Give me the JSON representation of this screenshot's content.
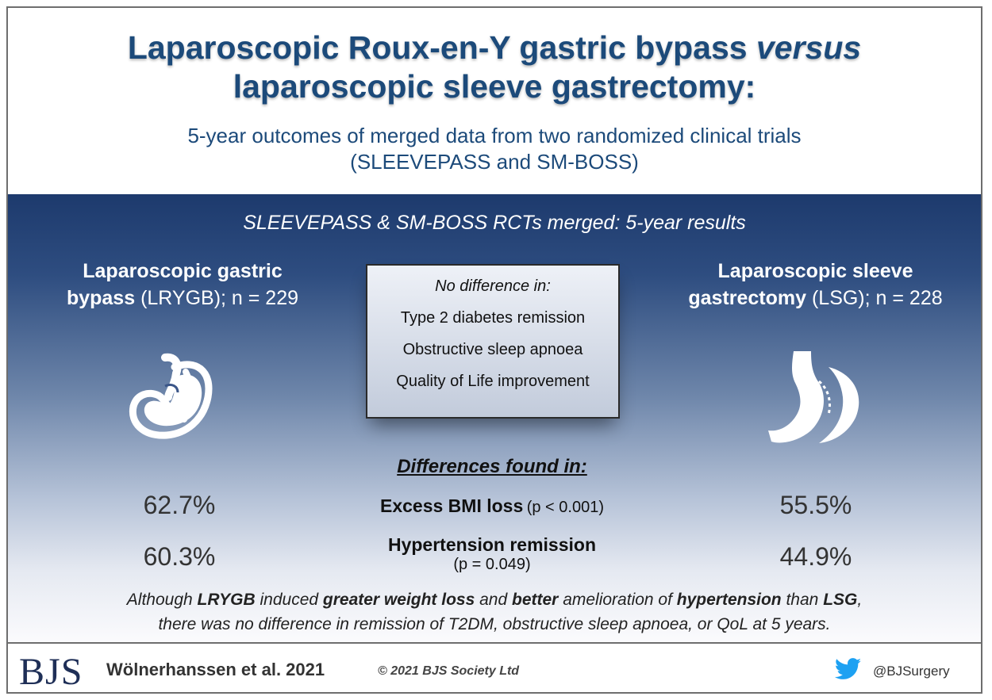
{
  "header": {
    "title_line1_a": "Laparoscopic Roux-en-Y gastric bypass ",
    "title_line1_b": "versus",
    "title_line2": "laparoscopic sleeve gastrectomy:",
    "subtitle_line1": "5-year outcomes of merged data from two randomized clinical trials",
    "subtitle_line2": "(SLEEVEPASS and SM-BOSS)"
  },
  "panel": {
    "heading": "SLEEVEPASS & SM-BOSS RCTs merged: 5-year results",
    "left_arm": {
      "bold_1": "Laparoscopic gastric",
      "bold_2": "bypass",
      "rest": " (LRYGB); n = 229",
      "icon": "gastric-bypass-stomach-icon"
    },
    "right_arm": {
      "bold_1": "Laparoscopic sleeve",
      "bold_2": "gastrectomy",
      "rest": " (LSG); n = 228",
      "icon": "sleeve-gastrectomy-stomach-icon"
    },
    "no_difference": {
      "heading": "No difference in:",
      "items": [
        "Type 2 diabetes remission",
        "Obstructive sleep apnoea",
        "Quality of Life improvement"
      ]
    },
    "differences": {
      "heading": "Differences found in:",
      "metrics": [
        {
          "name": "Excess BMI loss",
          "p": "(p < 0.001)",
          "lrygb": "62.7%",
          "lsg": "55.5%"
        },
        {
          "name": "Hypertension remission",
          "p": "(p = 0.049)",
          "lrygb": "60.3%",
          "lsg": "44.9%"
        }
      ]
    },
    "conclusion": {
      "t1": "Although ",
      "b1": "LRYGB",
      "t2": " induced ",
      "b2": "greater weight loss",
      "t3": " and ",
      "b3": "better",
      "t4": " amelioration of ",
      "b4": "hypertension",
      "t5": " than ",
      "b5": "LSG",
      "t6": ",",
      "line2": "there was no difference in remission of T2DM, obstructive sleep apnoea, or QoL at 5 years."
    }
  },
  "footer": {
    "logo": "BJS",
    "citation": "Wölnerhanssen et al. 2021",
    "copyright": "© 2021 BJS Society Ltd",
    "twitter_icon": "twitter-bird-icon",
    "handle": "@BJSurgery",
    "twitter_color": "#1da1f2"
  },
  "colors": {
    "title": "#1c4a7a",
    "panel_top": "#1d3a6d",
    "panel_bottom": "#fbfbfd"
  }
}
